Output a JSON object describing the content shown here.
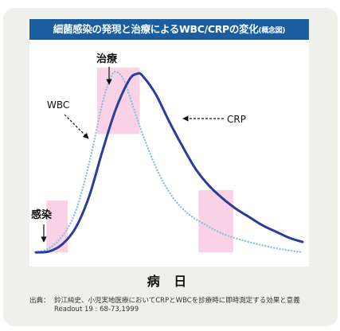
{
  "title": {
    "main": "細菌感染の発現と治療によるWBC/CRPの変化",
    "note": "(概念図)"
  },
  "chart_data": {
    "type": "line",
    "title": "細菌感染の発現と治療によるWBC/CRPの変化(概念図)",
    "xlabel": "病 日",
    "ylabel": "",
    "x_range": [
      0,
      100
    ],
    "y_range": [
      0,
      100
    ],
    "ticks_shown": false,
    "grid": false,
    "series": [
      {
        "name": "WBC",
        "style": "dotted",
        "color": "#8fc0e0",
        "x": [
          0,
          5,
          10,
          15,
          20,
          25,
          28,
          30,
          33,
          36,
          40,
          45,
          50,
          55,
          60,
          70,
          80,
          90,
          100
        ],
        "y": [
          3,
          5,
          11,
          23,
          46,
          75,
          87,
          90,
          86,
          75,
          60,
          44,
          32,
          24,
          19,
          12,
          8,
          5,
          3
        ]
      },
      {
        "name": "CRP",
        "style": "solid",
        "color": "#2b3d9c",
        "x": [
          0,
          5,
          10,
          15,
          20,
          25,
          30,
          35,
          38,
          40,
          45,
          50,
          55,
          60,
          65,
          70,
          75,
          80,
          85,
          90,
          95,
          100
        ],
        "y": [
          3,
          3.5,
          7,
          15,
          30,
          52,
          72,
          86,
          89,
          88,
          79,
          66,
          54,
          43,
          35,
          29,
          24,
          20,
          16,
          13,
          10,
          8
        ]
      }
    ],
    "highlights": [
      {
        "x": [
          4,
          12
        ],
        "y": [
          3,
          28
        ],
        "color": "#f9d3e5"
      },
      {
        "x": [
          23,
          39
        ],
        "y": [
          60,
          92
        ],
        "color": "#f9d3e5"
      },
      {
        "x": [
          61,
          74
        ],
        "y": [
          3,
          33
        ],
        "color": "#f9d3e5"
      }
    ],
    "annotations": [
      {
        "text": "感染",
        "target_x": 0.7,
        "target_y": 5,
        "arrow": "solid"
      },
      {
        "text": "治療",
        "target_x": 27,
        "target_y": 88,
        "arrow": "solid"
      },
      {
        "text": "WBC",
        "target_x": 14,
        "target_y": 57,
        "arrow": "dashed"
      },
      {
        "text": "CRP",
        "target_x": 47,
        "target_y": 66,
        "arrow": "dashed"
      }
    ]
  },
  "source": {
    "prefix": "出典：",
    "line1": "鈴江純史、小児実地医療においてCRPとWBCを診療時に即時測定する効果と意義",
    "line2": "Readout 19 : 68-73,1999"
  }
}
